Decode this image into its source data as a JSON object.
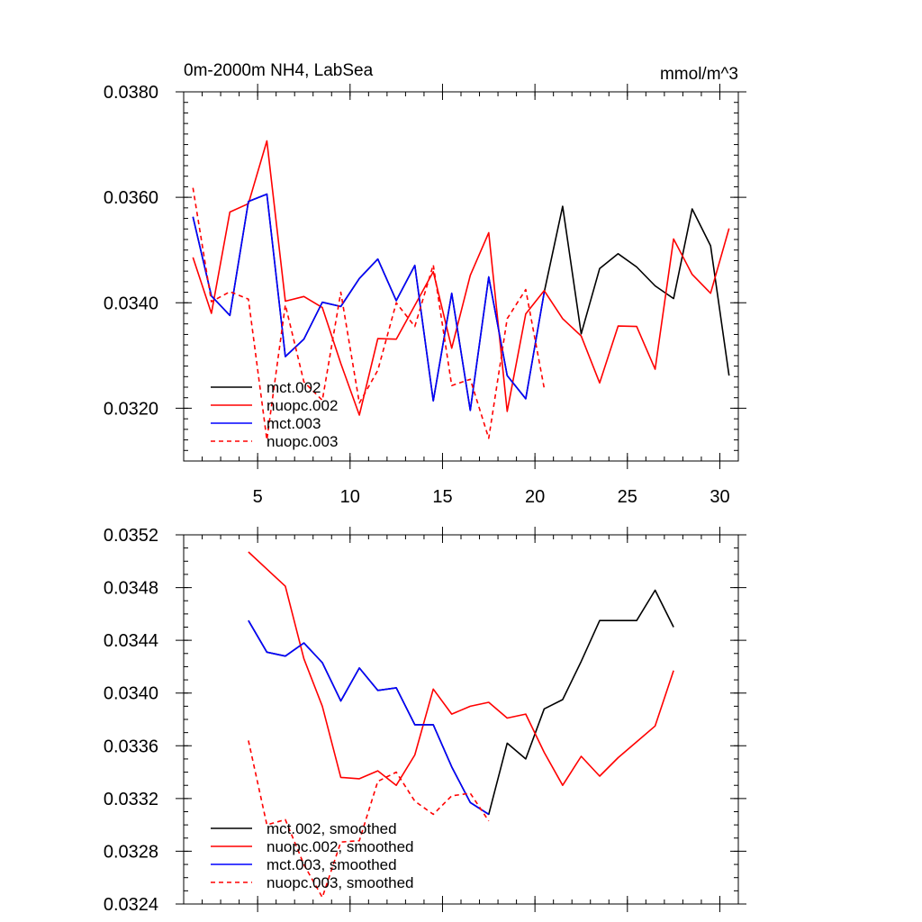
{
  "chart_data": [
    {
      "type": "line",
      "title": "0m-2000m NH4, LabSea",
      "units": "mmol/m^3",
      "xlabel": "",
      "ylabel": "",
      "xlim": [
        1,
        31
      ],
      "ylim": [
        0.031,
        0.038
      ],
      "xticks": [
        5,
        10,
        15,
        20,
        25,
        30
      ],
      "yticks": [
        0.032,
        0.034,
        0.036,
        0.038
      ],
      "ytick_labels": [
        "0.0320",
        "0.0340",
        "0.0360",
        "0.0380"
      ],
      "legend_position": "bottom-left",
      "series": [
        {
          "name": "mct.002",
          "color": "#000000",
          "dash": "solid",
          "x": [
            1.5,
            2.5,
            3.5,
            4.5,
            5.5,
            6.5,
            7.5,
            8.5,
            9.5,
            10.5,
            11.5,
            12.5,
            13.5,
            14.5,
            15.5,
            16.5,
            17.5,
            18.5,
            19.5,
            20.5,
            21.5,
            22.5,
            23.5,
            24.5,
            25.5,
            26.5,
            27.5,
            28.5,
            29.5,
            30.5
          ],
          "values": [
            0.03563,
            0.03413,
            0.03376,
            0.03592,
            0.03606,
            0.03298,
            0.03331,
            0.03401,
            0.03393,
            0.03446,
            0.03483,
            0.03404,
            0.03471,
            0.03214,
            0.03418,
            0.03196,
            0.03449,
            0.03262,
            0.03218,
            0.0342,
            0.03583,
            0.03341,
            0.03465,
            0.03493,
            0.03468,
            0.03432,
            0.03408,
            0.03578,
            0.03508,
            0.03262
          ]
        },
        {
          "name": "nuopc.002",
          "color": "#ff0000",
          "dash": "solid",
          "x": [
            1.5,
            2.5,
            3.5,
            4.5,
            5.5,
            6.5,
            7.5,
            8.5,
            9.5,
            10.5,
            11.5,
            12.5,
            13.5,
            14.5,
            15.5,
            16.5,
            17.5,
            18.5,
            19.5,
            20.5,
            21.5,
            22.5,
            23.5,
            24.5,
            25.5,
            26.5,
            27.5,
            28.5,
            29.5,
            30.5
          ],
          "values": [
            0.03486,
            0.0338,
            0.03572,
            0.03588,
            0.03707,
            0.03403,
            0.03412,
            0.03391,
            0.03285,
            0.03187,
            0.03332,
            0.03331,
            0.03395,
            0.03459,
            0.03314,
            0.03452,
            0.03533,
            0.03194,
            0.03379,
            0.03423,
            0.0337,
            0.03337,
            0.03248,
            0.03356,
            0.03355,
            0.03274,
            0.03521,
            0.03454,
            0.03418,
            0.03541
          ]
        },
        {
          "name": "mct.003",
          "color": "#0000ff",
          "dash": "solid",
          "x": [
            1.5,
            2.5,
            3.5,
            4.5,
            5.5,
            6.5,
            7.5,
            8.5,
            9.5,
            10.5,
            11.5,
            12.5,
            13.5,
            14.5,
            15.5,
            16.5,
            17.5,
            18.5,
            19.5,
            20.5
          ],
          "values": [
            0.03563,
            0.03413,
            0.03376,
            0.03592,
            0.03606,
            0.03298,
            0.03331,
            0.03401,
            0.03393,
            0.03446,
            0.03483,
            0.03404,
            0.03471,
            0.03214,
            0.03418,
            0.03196,
            0.03449,
            0.03262,
            0.03218,
            0.0342
          ]
        },
        {
          "name": "nuopc.003",
          "color": "#ff0000",
          "dash": "dashed",
          "x": [
            1.5,
            2.5,
            3.5,
            4.5,
            5.5,
            6.5,
            7.5,
            8.5,
            9.5,
            10.5,
            11.5,
            12.5,
            13.5,
            14.5,
            15.5,
            16.5,
            17.5,
            18.5,
            19.5,
            20.5
          ],
          "values": [
            0.03618,
            0.03402,
            0.03421,
            0.03407,
            0.0314,
            0.03396,
            0.0325,
            0.03215,
            0.0342,
            0.0321,
            0.03272,
            0.034,
            0.03355,
            0.03472,
            0.03243,
            0.03255,
            0.03143,
            0.0337,
            0.03425,
            0.03238
          ]
        }
      ]
    },
    {
      "type": "line",
      "title": "",
      "xlabel": "",
      "ylabel": "",
      "xlim": [
        1,
        31
      ],
      "ylim": [
        0.0324,
        0.0352
      ],
      "xticks": [
        5,
        10,
        15,
        20,
        25,
        30
      ],
      "yticks": [
        0.0324,
        0.0328,
        0.0332,
        0.0336,
        0.034,
        0.0344,
        0.0348,
        0.0352
      ],
      "ytick_labels": [
        "0.0324",
        "0.0328",
        "0.0332",
        "0.0336",
        "0.0340",
        "0.0344",
        "0.0348",
        "0.0352"
      ],
      "legend_position": "bottom-left",
      "series": [
        {
          "name": "mct.002, smoothed",
          "color": "#000000",
          "dash": "solid",
          "x": [
            4.5,
            5.5,
            6.5,
            7.5,
            8.5,
            9.5,
            10.5,
            11.5,
            12.5,
            13.5,
            14.5,
            15.5,
            16.5,
            17.5,
            18.5,
            19.5,
            20.5,
            21.5,
            22.5,
            23.5,
            24.5,
            25.5,
            26.5,
            27.5
          ],
          "values": [
            0.03455,
            0.03431,
            0.03428,
            0.03438,
            0.03423,
            0.03394,
            0.03419,
            0.03402,
            0.03404,
            0.03376,
            0.03376,
            0.03344,
            0.03317,
            0.03308,
            0.03362,
            0.0335,
            0.03388,
            0.03395,
            0.03424,
            0.03455,
            0.03455,
            0.03455,
            0.03478,
            0.0345
          ]
        },
        {
          "name": "nuopc.002, smoothed",
          "color": "#ff0000",
          "dash": "solid",
          "x": [
            4.5,
            5.5,
            6.5,
            7.5,
            8.5,
            9.5,
            10.5,
            11.5,
            12.5,
            13.5,
            14.5,
            15.5,
            16.5,
            17.5,
            18.5,
            19.5,
            20.5,
            21.5,
            22.5,
            23.5,
            24.5,
            25.5,
            26.5,
            27.5
          ],
          "values": [
            0.03507,
            0.03494,
            0.03481,
            0.03426,
            0.0339,
            0.03336,
            0.03335,
            0.03341,
            0.0333,
            0.03353,
            0.03403,
            0.03384,
            0.0339,
            0.03393,
            0.03381,
            0.03384,
            0.03355,
            0.0333,
            0.03352,
            0.03337,
            0.03351,
            0.03363,
            0.03375,
            0.03417
          ]
        },
        {
          "name": "mct.003, smoothed",
          "color": "#0000ff",
          "dash": "solid",
          "x": [
            4.5,
            5.5,
            6.5,
            7.5,
            8.5,
            9.5,
            10.5,
            11.5,
            12.5,
            13.5,
            14.5,
            15.5,
            16.5,
            17.5
          ],
          "values": [
            0.03455,
            0.03431,
            0.03428,
            0.03438,
            0.03423,
            0.03394,
            0.03419,
            0.03402,
            0.03404,
            0.03376,
            0.03376,
            0.03344,
            0.03317,
            0.03308
          ]
        },
        {
          "name": "nuopc.003, smoothed",
          "color": "#ff0000",
          "dash": "dashed",
          "x": [
            4.5,
            5.5,
            6.5,
            7.5,
            8.5,
            9.5,
            10.5,
            11.5,
            12.5,
            13.5,
            14.5,
            15.5,
            16.5,
            17.5
          ],
          "values": [
            0.03364,
            0.033,
            0.03304,
            0.0327,
            0.03245,
            0.03287,
            0.03288,
            0.03333,
            0.0334,
            0.03318,
            0.03308,
            0.03322,
            0.03324,
            0.03303
          ]
        }
      ]
    }
  ]
}
